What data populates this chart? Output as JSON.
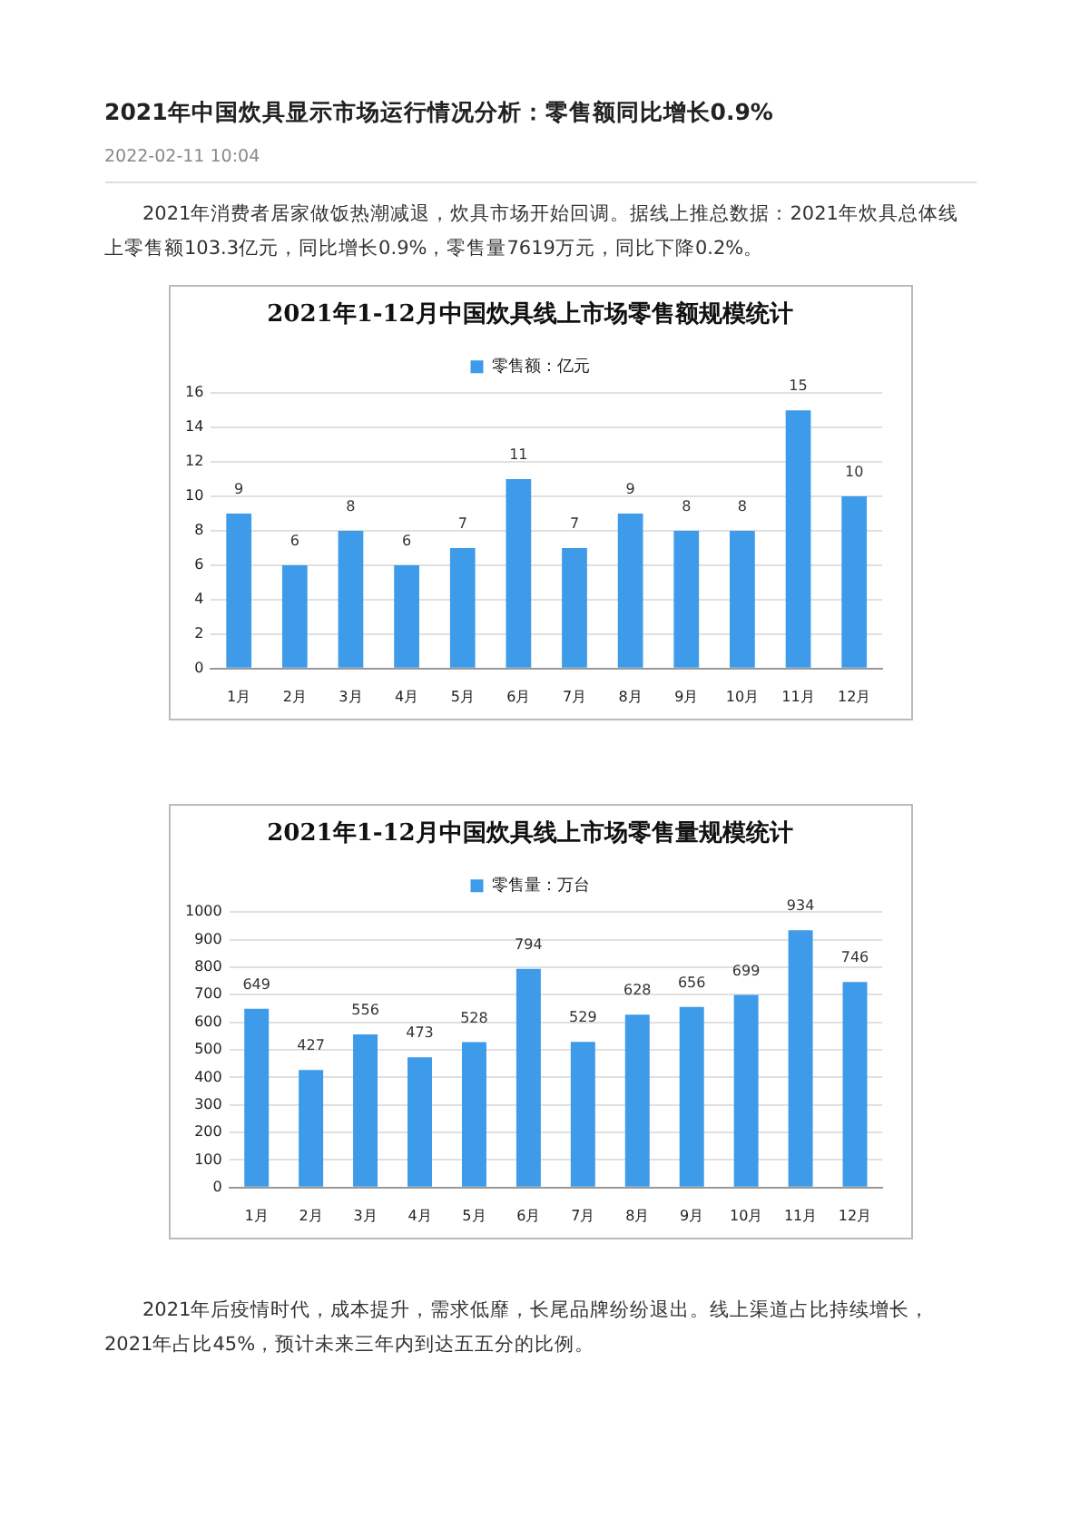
{
  "chart_data": [
    {
      "type": "bar",
      "title": "2021年1-12月中国炊具线上市场零售额规模统计",
      "annotations": [
        "2021年中国炊具显示市场运行情况分析：零售额同比增长0.9%",
        "2022-02-11 10:04",
        "2021年消费者居家做饭热潮减退，炊具市场开始回调。据线上推总数据：2021年炊具总体线上零售额103.3亿元，同比增长0.9%，零售量7619万元，同比下降0.2%。"
      ],
      "categories": [
        "1月",
        "2月",
        "3月",
        "4月",
        "5月",
        "6月",
        "7月",
        "8月",
        "9月",
        "10月",
        "11月",
        "12月"
      ],
      "series": [
        {
          "name": "零售额：亿元",
          "color": "#3d9be9",
          "values": [
            9,
            6,
            8,
            6,
            7,
            11,
            7,
            9,
            8,
            8,
            15,
            10
          ]
        }
      ],
      "ylim": [
        0,
        16
      ],
      "yticks": [
        0,
        2,
        4,
        6,
        8,
        10,
        12,
        14,
        16
      ],
      "grid": "y",
      "legend": "top",
      "data_labels": true
    },
    {
      "type": "bar",
      "title": "2021年1-12月中国炊具线上市场零售量规模统计",
      "annotations": [
        "2021年后疫情时代，成本提升，需求低靡，长尾品牌纷纷退出。线上渠道占比持续增长，2021年占比45%，预计未来三年内到达五五分的比例。"
      ],
      "categories": [
        "1月",
        "2月",
        "3月",
        "4月",
        "5月",
        "6月",
        "7月",
        "8月",
        "9月",
        "10月",
        "11月",
        "12月"
      ],
      "series": [
        {
          "name": "零售量：万台",
          "color": "#3d9be9",
          "values": [
            649,
            427,
            556,
            473,
            528,
            794,
            529,
            628,
            656,
            699,
            934,
            746
          ]
        }
      ],
      "ylim": [
        0,
        1000
      ],
      "yticks": [
        0,
        100,
        200,
        300,
        400,
        500,
        600,
        700,
        800,
        900,
        1000
      ],
      "grid": "y",
      "legend": "top",
      "data_labels": true
    }
  ]
}
